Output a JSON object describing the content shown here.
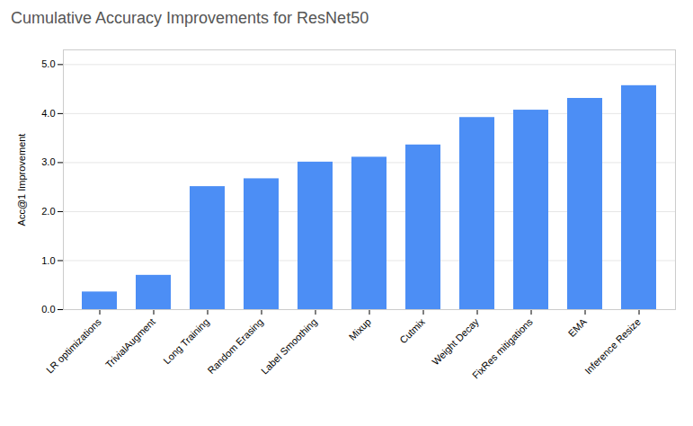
{
  "chart_data": {
    "type": "bar",
    "title": "Cumulative Accuracy Improvements for ResNet50",
    "ylabel": "Acc@1 Improvement",
    "categories": [
      "LR optimizations",
      "TrivialAugment",
      "Long Training",
      "Random Erasing",
      "Label Smoothing",
      "Mixup",
      "Cutmix",
      "Weight Decay",
      "FixRes mitigations",
      "EMA",
      "Inference Resize"
    ],
    "values": [
      0.36,
      0.7,
      2.51,
      2.67,
      3.01,
      3.11,
      3.36,
      3.92,
      4.07,
      4.31,
      4.57
    ],
    "color": "#4C8EF5",
    "ylim": [
      0,
      5.3
    ],
    "yticks": [
      0,
      1,
      2,
      3,
      4,
      5
    ],
    "grid": true
  }
}
